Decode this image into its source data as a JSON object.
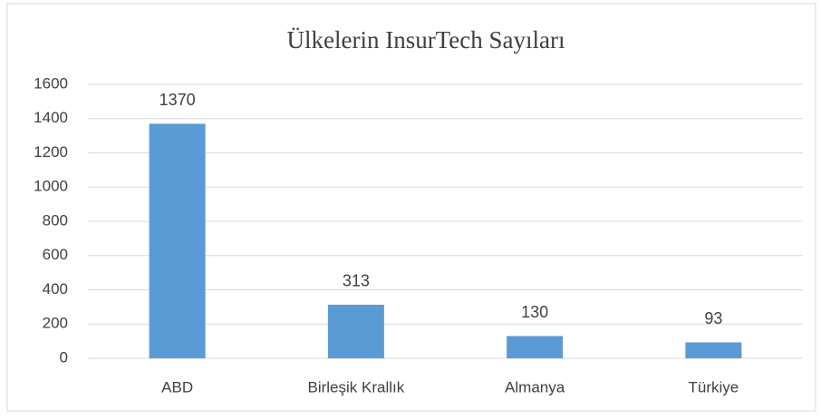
{
  "chart_data": {
    "type": "bar",
    "title": "Ülkelerin InsurTech Sayıları",
    "categories": [
      "ABD",
      "Birleşik Krallık",
      "Almanya",
      "Türkiye"
    ],
    "values": [
      1370,
      313,
      130,
      93
    ],
    "color": "#5b9bd5",
    "ylim": [
      0,
      1600
    ],
    "yticks": [
      0,
      200,
      400,
      600,
      800,
      1000,
      1200,
      1400,
      1600
    ],
    "grid": true
  }
}
